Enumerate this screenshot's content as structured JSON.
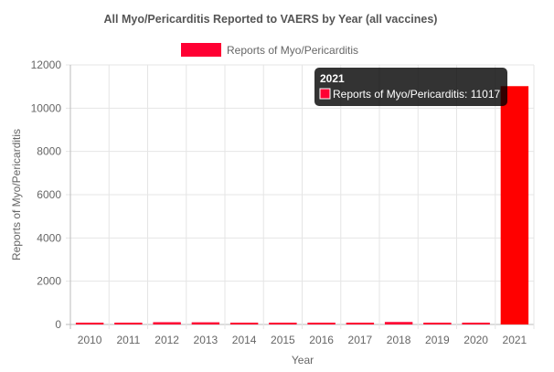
{
  "chart_data": {
    "type": "bar",
    "title": "All Myo/Pericarditis Reported to VAERS by Year (all vaccines)",
    "xlabel": "Year",
    "ylabel": "Reports of Myo/Pericarditis",
    "ylim": [
      0,
      12000
    ],
    "yticks": [
      0,
      2000,
      4000,
      6000,
      8000,
      10000,
      12000
    ],
    "grid": true,
    "legend_position": "top-center",
    "categories": [
      "2010",
      "2011",
      "2012",
      "2013",
      "2014",
      "2015",
      "2016",
      "2017",
      "2018",
      "2019",
      "2020",
      "2021"
    ],
    "series": [
      {
        "name": "Reports of Myo/Pericarditis",
        "values": [
          55,
          60,
          105,
          100,
          60,
          35,
          40,
          55,
          115,
          65,
          50,
          11017
        ],
        "color": "#ff0033",
        "highlight_color": "#ff0000"
      }
    ],
    "tooltip": {
      "title": "2021",
      "body": "Reports of Myo/Pericarditis: 11017"
    }
  }
}
